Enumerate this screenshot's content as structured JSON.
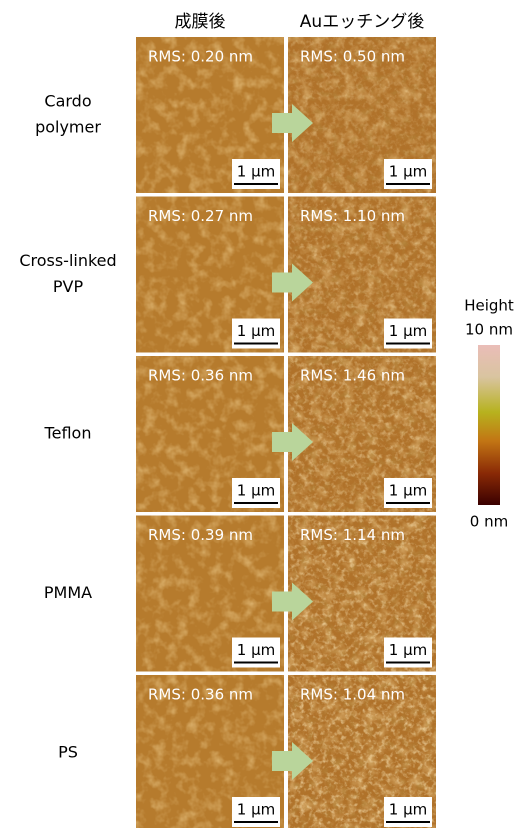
{
  "columns": [
    "成膜後",
    "Auエッチング後"
  ],
  "rows": [
    {
      "label": [
        "Cardo",
        "polymer"
      ],
      "before": {
        "rms": "RMS: 0.20 nm",
        "scale": "1 μm"
      },
      "after": {
        "rms": "RMS: 0.50 nm",
        "scale": "1 μm"
      }
    },
    {
      "label": [
        "Cross-linked",
        "PVP"
      ],
      "before": {
        "rms": "RMS: 0.27 nm",
        "scale": "1 μm"
      },
      "after": {
        "rms": "RMS: 1.10 nm",
        "scale": "1 μm"
      }
    },
    {
      "label": [
        "Teflon"
      ],
      "before": {
        "rms": "RMS: 0.36 nm",
        "scale": "1 μm"
      },
      "after": {
        "rms": "RMS: 1.46 nm",
        "scale": "1 μm"
      }
    },
    {
      "label": [
        "PMMA"
      ],
      "before": {
        "rms": "RMS: 0.39 nm",
        "scale": "1 μm"
      },
      "after": {
        "rms": "RMS: 1.14 nm",
        "scale": "1 μm"
      }
    },
    {
      "label": [
        "PS"
      ],
      "before": {
        "rms": "RMS: 0.36 nm",
        "scale": "1 μm"
      },
      "after": {
        "rms": "RMS: 1.04 nm",
        "scale": "1 μm"
      }
    }
  ],
  "colorbar": {
    "title": "Height",
    "max": "10 nm",
    "min": "0 nm"
  }
}
